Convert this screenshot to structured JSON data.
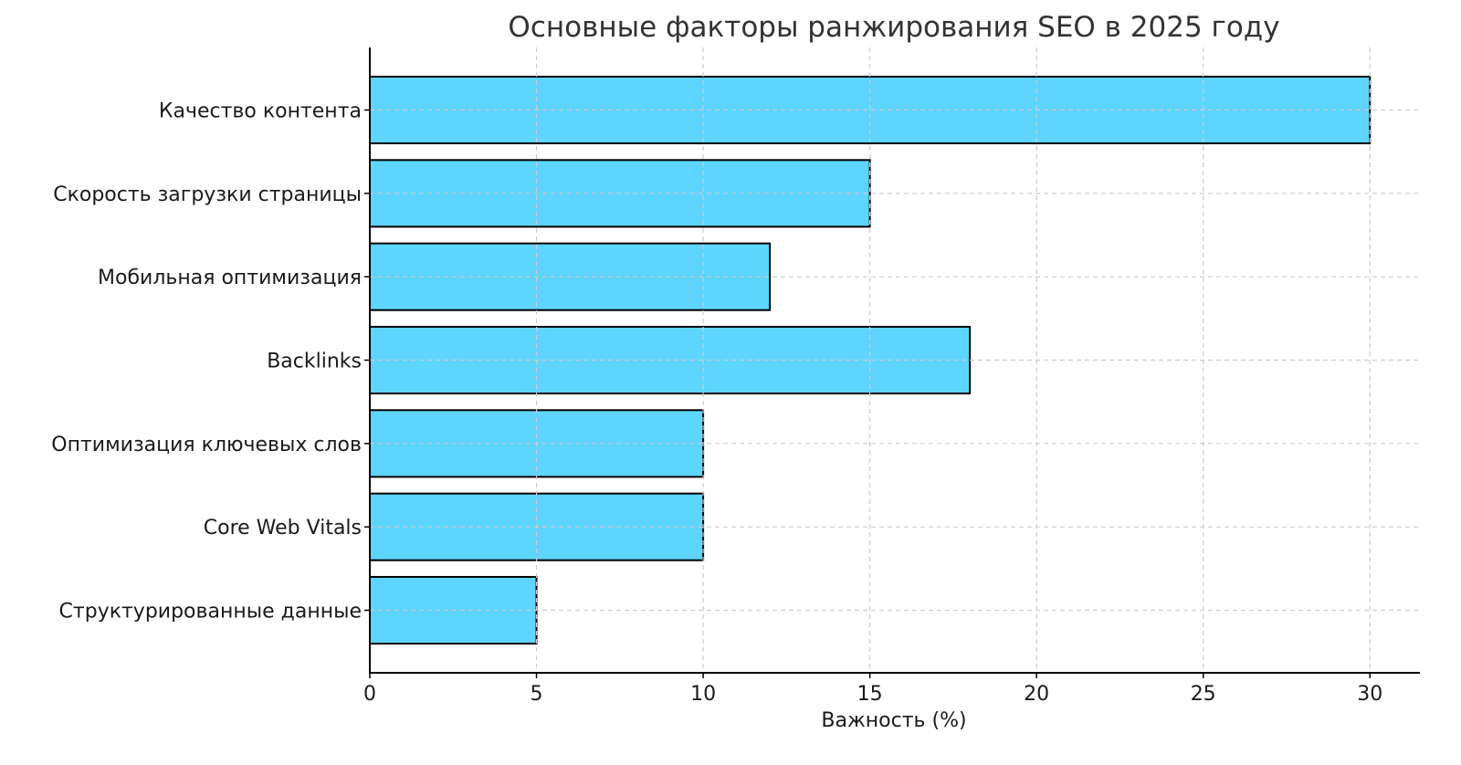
{
  "chart_data": {
    "type": "bar",
    "orientation": "horizontal",
    "title": "Основные факторы ранжирования SEO в 2025 году",
    "xlabel": "Важность (%)",
    "ylabel": "",
    "categories": [
      "Качество контента",
      "Скорость загрузки страницы",
      "Мобильная оптимизация",
      "Backlinks",
      "Оптимизация ключевых слов",
      "Core Web Vitals",
      "Структурированные данные"
    ],
    "values": [
      30,
      15,
      12,
      18,
      10,
      10,
      5
    ],
    "xlim": [
      0,
      31.5
    ],
    "xticks": [
      "0",
      "5",
      "10",
      "15",
      "20",
      "25",
      "30"
    ],
    "grid": true,
    "colors": {
      "bar": "#5dd5ff",
      "edge": "#000000",
      "grid": "#cccccc"
    }
  }
}
